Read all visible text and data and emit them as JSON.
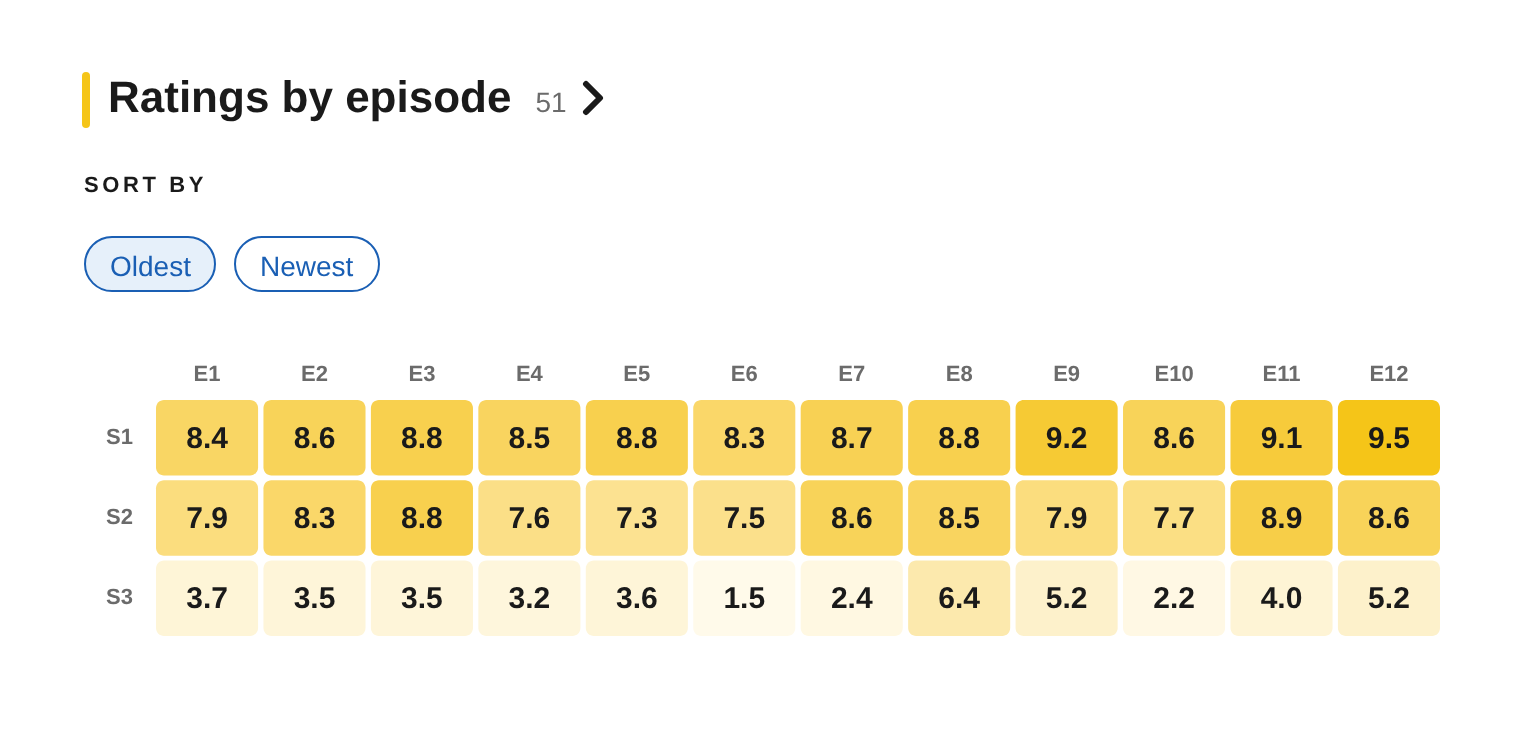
{
  "chart_data": {
    "type": "heatmap",
    "title": "Ratings by episode",
    "annotations": [
      "51",
      "SORT BY",
      "Oldest",
      "Newest"
    ],
    "categories": [
      "E1",
      "E2",
      "E3",
      "E4",
      "E5",
      "E6",
      "E7",
      "E8",
      "E9",
      "E10",
      "E11",
      "E12"
    ],
    "y_categories": [
      "S1",
      "S2",
      "S3"
    ],
    "cells": [
      [
        8.4,
        8.6,
        8.8,
        8.5,
        8.8,
        8.3,
        8.7,
        8.8,
        9.2,
        8.6,
        9.1,
        9.5
      ],
      [
        7.9,
        8.3,
        8.8,
        7.6,
        7.3,
        7.5,
        8.6,
        8.5,
        7.9,
        7.7,
        8.9,
        8.6
      ],
      [
        3.7,
        3.5,
        3.5,
        3.2,
        3.6,
        1.5,
        2.4,
        6.4,
        5.2,
        2.2,
        4.0,
        5.2
      ]
    ],
    "cell_labels": [
      [
        "8.4",
        "8.6",
        "8.8",
        "8.5",
        "8.8",
        "8.3",
        "8.7",
        "8.8",
        "9.2",
        "8.6",
        "9.1",
        "9.5"
      ],
      [
        "7.9",
        "8.3",
        "8.8",
        "7.6",
        "7.3",
        "7.5",
        "8.6",
        "8.5",
        "7.9",
        "7.7",
        "8.9",
        "8.6"
      ],
      [
        "3.7",
        "3.5",
        "3.5",
        "3.2",
        "3.6",
        "1.5",
        "2.4",
        "6.4",
        "5.2",
        "2.2",
        "4.0",
        "5.2"
      ]
    ]
  }
}
